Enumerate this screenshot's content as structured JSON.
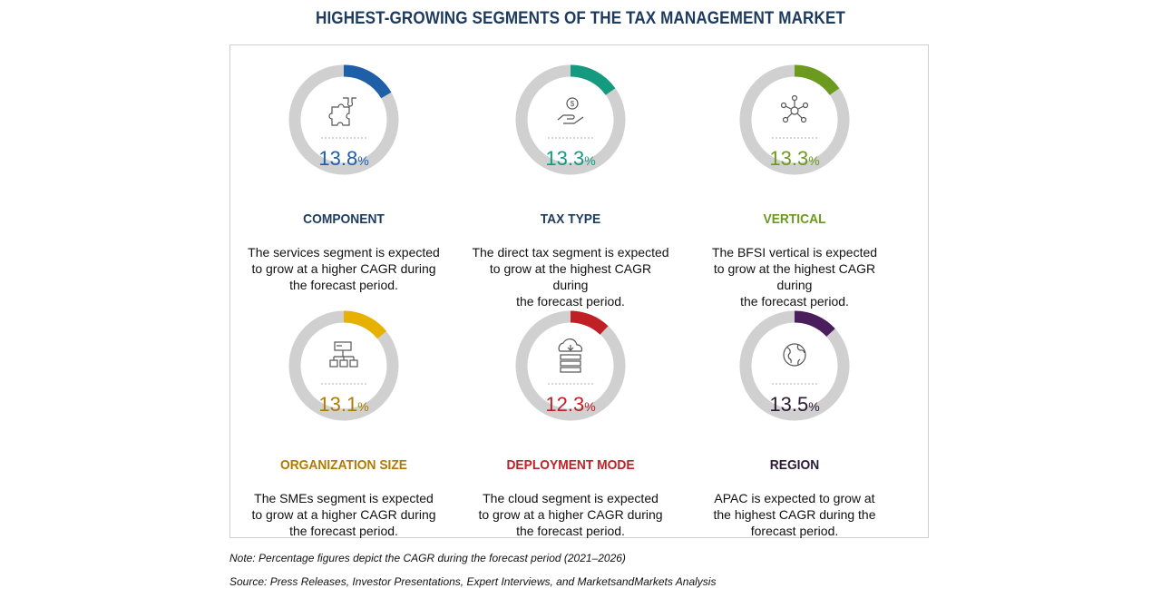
{
  "title": "HIGHEST-GROWING SEGMENTS OF THE TAX MANAGEMENT MARKET",
  "colors": {
    "title": "#1d3b5e",
    "ring": "#d0d0d0",
    "component": "#1f5fa8",
    "tax_type": "#159a7f",
    "vertical": "#6c9a1f",
    "organization_size": "#e6b100",
    "deployment_mode": "#c01f25",
    "region": "#4a1e5c"
  },
  "cards": [
    {
      "key": "component",
      "icon": "puzzle-icon",
      "value": "13.8",
      "unit": "%",
      "label": "COMPONENT",
      "label_color": "#1d3b5e",
      "value_color": "#1f5fa8",
      "accent": "#1f5fa8",
      "description": [
        "The services segment is expected",
        "to grow at a higher CAGR during",
        "the forecast period."
      ]
    },
    {
      "key": "tax_type",
      "icon": "dollar-hand-icon",
      "value": "13.3",
      "unit": "%",
      "label": "TAX TYPE",
      "label_color": "#1d3b5e",
      "value_color": "#159a7f",
      "accent": "#159a7f",
      "description": [
        "The direct tax segment is expected",
        "to grow at the highest CAGR during",
        "the forecast period."
      ]
    },
    {
      "key": "vertical",
      "icon": "network-icon",
      "value": "13.3",
      "unit": "%",
      "label": "VERTICAL",
      "label_color": "#6c9a1f",
      "value_color": "#6c9a1f",
      "accent": "#6c9a1f",
      "description": [
        "The BFSI vertical is expected",
        "to grow at the highest CAGR during",
        "the forecast period."
      ]
    },
    {
      "key": "organization_size",
      "icon": "org-chart-icon",
      "value": "13.1",
      "unit": "%",
      "label": "ORGANIZATION SIZE",
      "label_color": "#b07a00",
      "value_color": "#b07a00",
      "accent": "#e6b100",
      "description": [
        "The SMEs segment is expected",
        "to grow at a higher CAGR during",
        "the forecast period."
      ]
    },
    {
      "key": "deployment_mode",
      "icon": "cloud-server-icon",
      "value": "12.3",
      "unit": "%",
      "label": "DEPLOYMENT MODE",
      "label_color": "#c01f25",
      "value_color": "#c01f25",
      "accent": "#c01f25",
      "description": [
        "The cloud segment is expected",
        "to grow at a higher CAGR during",
        "the forecast period."
      ]
    },
    {
      "key": "region",
      "icon": "globe-icon",
      "value": "13.5",
      "unit": "%",
      "label": "REGION",
      "label_color": "#2a1a33",
      "value_color": "#2a1a33",
      "accent": "#4a1e5c",
      "description": [
        "APAC is expected to grow at",
        "the highest CAGR during the",
        "forecast period."
      ]
    }
  ],
  "note": "Note: Percentage figures depict the CAGR during the forecast period (2021–2026)",
  "source": "Source: Press Releases, Investor Presentations, Expert Interviews, and MarketsandMarkets Analysis"
}
